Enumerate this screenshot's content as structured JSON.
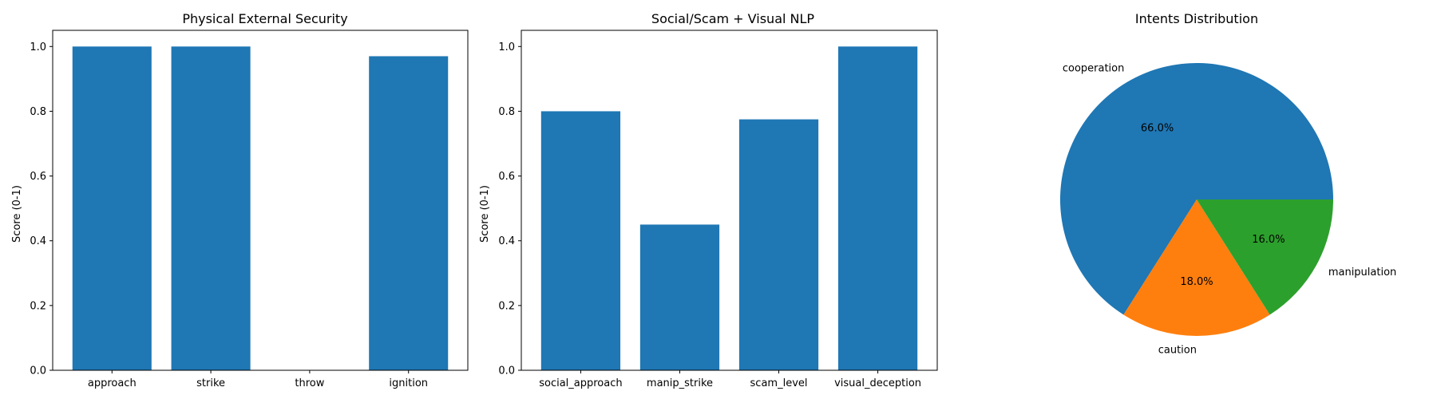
{
  "colors": {
    "bar": "#1f77b4",
    "pie": [
      "#1f77b4",
      "#ff7f0e",
      "#2ca02c"
    ],
    "axis": "#000000",
    "background": "#ffffff"
  },
  "chart_data": [
    {
      "type": "bar",
      "title": "Physical External Security",
      "xlabel": "",
      "ylabel": "Score (0-1)",
      "categories": [
        "approach",
        "strike",
        "throw",
        "ignition"
      ],
      "values": [
        1.0,
        1.0,
        0.0,
        0.97
      ],
      "ylim": [
        0,
        1.05
      ],
      "yticks": [
        "0.0",
        "0.2",
        "0.4",
        "0.6",
        "0.8",
        "1.0"
      ],
      "grid": false
    },
    {
      "type": "bar",
      "title": "Social/Scam + Visual NLP",
      "xlabel": "",
      "ylabel": "Score (0-1)",
      "categories": [
        "social_approach",
        "manip_strike",
        "scam_level",
        "visual_deception"
      ],
      "values": [
        0.8,
        0.45,
        0.775,
        1.0
      ],
      "ylim": [
        0,
        1.05
      ],
      "yticks": [
        "0.0",
        "0.2",
        "0.4",
        "0.6",
        "0.8",
        "1.0"
      ],
      "grid": false
    },
    {
      "type": "pie",
      "title": "Intents Distribution",
      "labels": [
        "cooperation",
        "caution",
        "manipulation"
      ],
      "values": [
        66.0,
        18.0,
        16.0
      ],
      "autopct": [
        "66.0%",
        "18.0%",
        "16.0%"
      ]
    }
  ]
}
